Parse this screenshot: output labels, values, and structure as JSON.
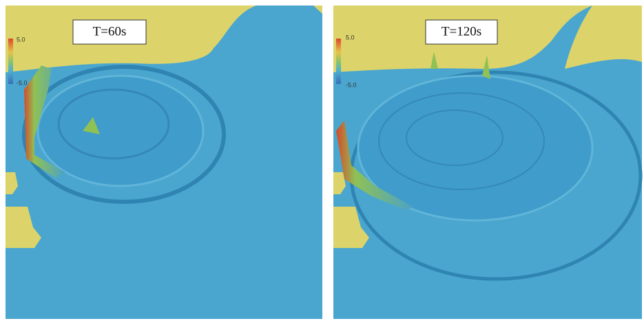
{
  "panels": [
    {
      "label": "T=60s",
      "scale_max": "5.0",
      "scale_min": "-5.0"
    },
    {
      "label": "T=120s",
      "scale_max": "5.0",
      "scale_min": "-5.0"
    }
  ]
}
